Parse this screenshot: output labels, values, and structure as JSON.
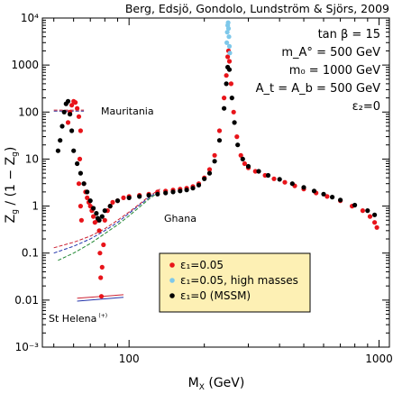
{
  "chart_data": {
    "type": "scatter",
    "title": "Berg, Edsjö, Gondolo, Lundström & Sjörs, 2009",
    "xlabel": "M_X (GeV)",
    "ylabel": "Z_g / (1 − Z_g)",
    "xscale": "log",
    "yscale": "log",
    "xlim": [
      45,
      1100
    ],
    "ylim": [
      0.001,
      10000
    ],
    "x_ticks": [
      {
        "value": 100,
        "label": "100"
      },
      {
        "value": 1000,
        "label": "1000"
      }
    ],
    "y_ticks": [
      {
        "value": 0.001,
        "label": "10⁻³"
      },
      {
        "value": 0.01,
        "label": "0.01"
      },
      {
        "value": 0.1,
        "label": "0.1"
      },
      {
        "value": 1,
        "label": "1"
      },
      {
        "value": 10,
        "label": "10"
      },
      {
        "value": 100,
        "label": "100"
      },
      {
        "value": 1000,
        "label": "1000"
      },
      {
        "value": 10000,
        "label": "10⁴"
      }
    ],
    "parameters": [
      "tan β = 15",
      "m_A° = 500 GeV",
      "m₀ = 1000 GeV",
      "A_t = A_b = 500 GeV",
      "ε₂=0"
    ],
    "legend_position": "bottom-center",
    "series": [
      {
        "name": "ε₁=0.05",
        "color": "#e8141a",
        "points": [
          [
            57,
            60
          ],
          [
            58,
            100
          ],
          [
            59,
            140
          ],
          [
            60,
            170
          ],
          [
            61,
            160
          ],
          [
            62,
            120
          ],
          [
            63,
            80
          ],
          [
            64,
            40
          ],
          [
            63.5,
            10
          ],
          [
            63,
            3
          ],
          [
            64,
            1
          ],
          [
            64.5,
            0.5
          ],
          [
            66,
            3
          ],
          [
            67,
            2
          ],
          [
            68,
            1.5
          ],
          [
            69,
            1.2
          ],
          [
            70,
            1.0
          ],
          [
            71,
            0.8
          ],
          [
            72,
            0.6
          ],
          [
            73,
            0.45
          ],
          [
            75,
            0.5
          ],
          [
            76,
            0.3
          ],
          [
            76.5,
            0.1
          ],
          [
            77,
            0.03
          ],
          [
            77.5,
            0.012
          ],
          [
            78,
            0.05
          ],
          [
            79,
            0.15
          ],
          [
            80,
            0.5
          ],
          [
            82,
            0.8
          ],
          [
            84,
            1.0
          ],
          [
            86,
            1.2
          ],
          [
            90,
            1.3
          ],
          [
            95,
            1.5
          ],
          [
            100,
            1.6
          ],
          [
            110,
            1.7
          ],
          [
            120,
            1.8
          ],
          [
            130,
            2.0
          ],
          [
            140,
            2.1
          ],
          [
            150,
            2.2
          ],
          [
            160,
            2.3
          ],
          [
            170,
            2.4
          ],
          [
            180,
            2.6
          ],
          [
            190,
            3.0
          ],
          [
            200,
            4
          ],
          [
            210,
            6
          ],
          [
            220,
            12
          ],
          [
            230,
            40
          ],
          [
            240,
            200
          ],
          [
            245,
            600
          ],
          [
            248,
            1500
          ],
          [
            250,
            2000
          ],
          [
            252,
            1200
          ],
          [
            256,
            400
          ],
          [
            262,
            100
          ],
          [
            270,
            30
          ],
          [
            280,
            12
          ],
          [
            290,
            8
          ],
          [
            300,
            6.5
          ],
          [
            320,
            5.5
          ],
          [
            350,
            4.5
          ],
          [
            380,
            3.8
          ],
          [
            420,
            3.2
          ],
          [
            460,
            2.7
          ],
          [
            500,
            2.3
          ],
          [
            560,
            1.9
          ],
          [
            620,
            1.6
          ],
          [
            700,
            1.3
          ],
          [
            780,
            1.0
          ],
          [
            860,
            0.8
          ],
          [
            920,
            0.6
          ],
          [
            960,
            0.45
          ],
          [
            980,
            0.35
          ]
        ]
      },
      {
        "name": "ε₁=0.05, high masses",
        "color": "#7ec8ea",
        "points": [
          [
            246,
            3000
          ],
          [
            247,
            5000
          ],
          [
            248,
            7000
          ],
          [
            249,
            8000
          ],
          [
            250,
            6000
          ],
          [
            251,
            4000
          ],
          [
            252,
            2500
          ],
          [
            253,
            1800
          ]
        ]
      },
      {
        "name": "ε₁=0 (MSSM)",
        "color": "#000000",
        "points": [
          [
            52,
            15
          ],
          [
            53,
            25
          ],
          [
            54,
            50
          ],
          [
            55,
            100
          ],
          [
            56,
            150
          ],
          [
            57,
            170
          ],
          [
            58,
            90
          ],
          [
            59,
            40
          ],
          [
            60,
            15
          ],
          [
            62,
            8
          ],
          [
            64,
            5
          ],
          [
            66,
            3
          ],
          [
            68,
            2
          ],
          [
            70,
            1.3
          ],
          [
            72,
            0.9
          ],
          [
            74,
            0.7
          ],
          [
            75,
            0.55
          ],
          [
            76,
            0.5
          ],
          [
            78,
            0.6
          ],
          [
            80,
            0.8
          ],
          [
            84,
            1.0
          ],
          [
            90,
            1.3
          ],
          [
            100,
            1.5
          ],
          [
            110,
            1.6
          ],
          [
            120,
            1.7
          ],
          [
            130,
            1.8
          ],
          [
            140,
            1.9
          ],
          [
            150,
            2.0
          ],
          [
            160,
            2.1
          ],
          [
            170,
            2.2
          ],
          [
            180,
            2.4
          ],
          [
            190,
            2.8
          ],
          [
            200,
            3.8
          ],
          [
            210,
            5
          ],
          [
            220,
            9
          ],
          [
            230,
            25
          ],
          [
            240,
            120
          ],
          [
            245,
            400
          ],
          [
            248,
            900
          ],
          [
            252,
            800
          ],
          [
            258,
            200
          ],
          [
            264,
            60
          ],
          [
            272,
            20
          ],
          [
            285,
            10
          ],
          [
            300,
            7
          ],
          [
            330,
            5.5
          ],
          [
            360,
            4.5
          ],
          [
            400,
            3.7
          ],
          [
            450,
            3.0
          ],
          [
            500,
            2.5
          ],
          [
            550,
            2.1
          ],
          [
            600,
            1.8
          ],
          [
            650,
            1.55
          ],
          [
            700,
            1.35
          ],
          [
            800,
            1.05
          ],
          [
            900,
            0.8
          ],
          [
            960,
            0.65
          ]
        ]
      }
    ],
    "curves": [
      {
        "label": "Mauritania",
        "color": "#cc2233",
        "dashed": true,
        "points": [
          [
            50,
            110
          ],
          [
            66,
            110
          ]
        ]
      },
      {
        "label": "Mauritania",
        "color": "#333399",
        "dashed": true,
        "points": [
          [
            50,
            105
          ],
          [
            66,
            105
          ]
        ]
      },
      {
        "label": "Ghana",
        "color": "#cc2233",
        "dashed": true,
        "points": [
          [
            50,
            0.13
          ],
          [
            60,
            0.17
          ],
          [
            70,
            0.23
          ],
          [
            80,
            0.33
          ],
          [
            90,
            0.5
          ],
          [
            100,
            0.75
          ],
          [
            110,
            1.1
          ],
          [
            120,
            1.6
          ],
          [
            133,
            2.3
          ]
        ]
      },
      {
        "label": "Ghana",
        "color": "#2233aa",
        "dashed": true,
        "points": [
          [
            50,
            0.1
          ],
          [
            60,
            0.14
          ],
          [
            70,
            0.2
          ],
          [
            80,
            0.3
          ],
          [
            90,
            0.45
          ],
          [
            100,
            0.7
          ],
          [
            110,
            1.05
          ],
          [
            120,
            1.5
          ],
          [
            133,
            2.2
          ]
        ]
      },
      {
        "label": "Ghana",
        "color": "#228833",
        "dashed": true,
        "points": [
          [
            52,
            0.07
          ],
          [
            60,
            0.1
          ],
          [
            70,
            0.16
          ],
          [
            80,
            0.26
          ],
          [
            90,
            0.4
          ],
          [
            100,
            0.62
          ],
          [
            110,
            0.95
          ],
          [
            120,
            1.4
          ],
          [
            133,
            2.1
          ]
        ]
      },
      {
        "label": "St Helena",
        "color": "#cc2233",
        "dashed": false,
        "points": [
          [
            62,
            0.011
          ],
          [
            95,
            0.013
          ]
        ]
      },
      {
        "label": "St Helena",
        "color": "#2233aa",
        "dashed": false,
        "points": [
          [
            62,
            0.0095
          ],
          [
            95,
            0.0115
          ]
        ]
      }
    ],
    "annotations": [
      {
        "text": "Mauritania"
      },
      {
        "text": "Ghana"
      },
      {
        "text": "St Helena",
        "superscript": "(+)"
      }
    ]
  }
}
